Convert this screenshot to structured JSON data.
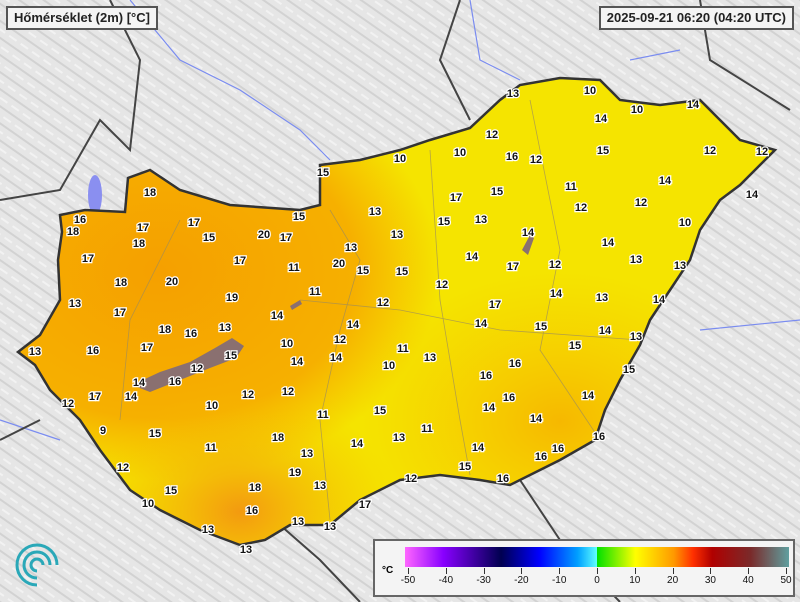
{
  "title": "Hőmérséklet (2m) [°C]",
  "timestamp": "2025-09-21 06:20 (04:20 UTC)",
  "legend": {
    "unit": "°C",
    "ticks": [
      "-50",
      "-40",
      "-30",
      "-20",
      "-10",
      "0",
      "10",
      "20",
      "30",
      "40",
      "50"
    ],
    "range": [
      -50,
      50
    ]
  },
  "colors": {
    "warm": "#f6a800",
    "mild": "#f5e600",
    "lake": "#8a7070",
    "border": "#333333",
    "river": "#6a7cf0"
  },
  "stations": [
    13,
    10,
    14,
    10,
    14,
    12,
    15,
    12,
    12,
    10,
    10,
    16,
    12,
    15,
    11,
    14,
    14,
    17,
    15,
    12,
    12,
    10,
    13,
    15,
    13,
    14,
    13,
    13,
    14,
    20,
    15,
    15,
    14,
    17,
    12,
    13,
    13,
    12,
    14,
    13,
    14,
    12,
    17,
    14,
    15,
    14,
    14,
    13,
    12,
    11,
    15,
    13,
    14,
    10,
    16,
    16,
    15,
    16,
    14,
    14,
    15,
    14,
    11,
    14,
    13,
    14,
    16,
    16,
    16,
    15,
    12,
    16,
    17,
    13,
    13,
    13,
    18,
    16,
    18,
    17,
    17,
    15,
    20,
    17,
    15,
    18,
    17,
    17,
    20,
    18,
    11,
    11,
    13,
    17,
    19,
    14,
    18,
    16,
    13,
    10,
    14,
    13,
    16,
    17,
    15,
    12,
    14,
    16,
    12,
    17,
    14,
    10,
    12,
    12,
    11,
    9,
    15,
    11,
    18,
    13,
    12,
    19,
    18,
    13,
    15,
    10,
    16,
    13
  ]
}
